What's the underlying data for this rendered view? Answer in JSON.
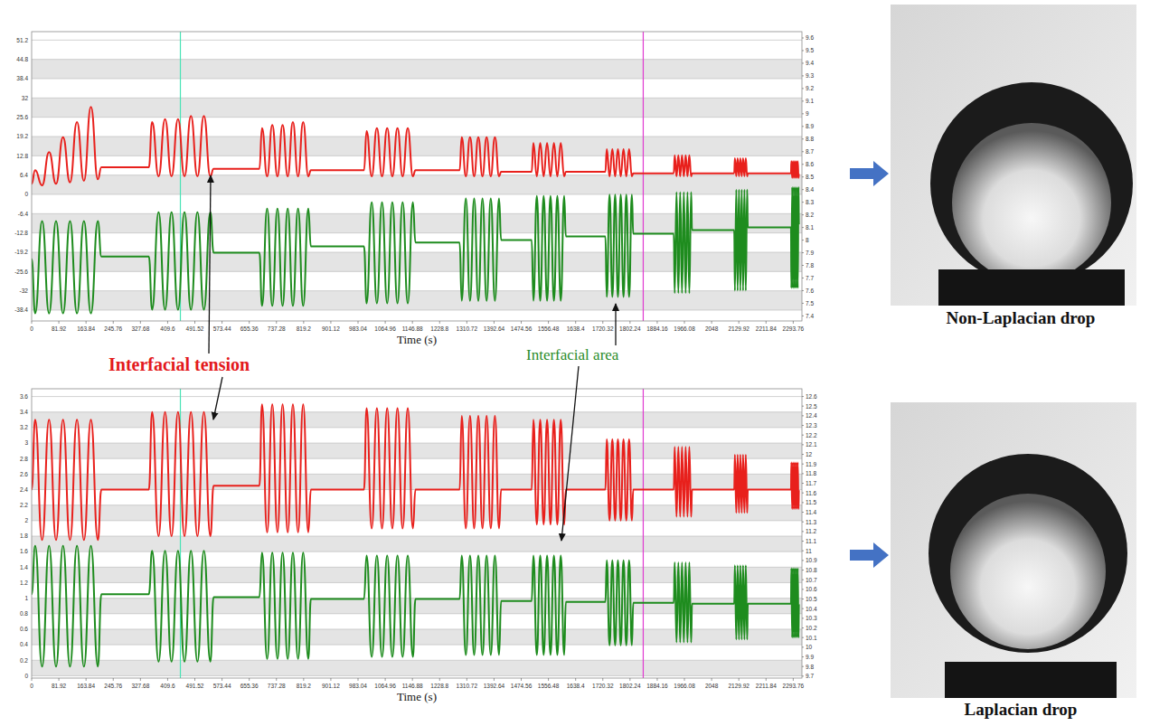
{
  "chart_data": [
    {
      "type": "line",
      "x_label": "Time (s)",
      "grid": true,
      "xlim": [
        0,
        2320
      ],
      "xticks": [
        0,
        81.92,
        163.84,
        245.76,
        327.68,
        409.6,
        491.52,
        573.44,
        655.36,
        737.28,
        819.2,
        901.12,
        983.04,
        1064.96,
        1146.88,
        1228.8,
        1310.72,
        1392.64,
        1474.56,
        1556.48,
        1638.4,
        1720.32,
        1802.24,
        1884.16,
        1966.08,
        2048,
        2129.92,
        2211.84,
        2293.76
      ],
      "ylim": [
        -42,
        54
      ],
      "yticks": [
        -38.4,
        -32,
        -25.6,
        -19.2,
        -12.8,
        -6.4,
        0,
        6.4,
        12.8,
        19.2,
        25.6,
        32,
        38.4,
        44.8,
        51.2
      ],
      "y2lim": [
        7.36,
        9.65
      ],
      "y2ticks": [
        7.4,
        7.5,
        7.6,
        7.7,
        7.8,
        7.9,
        8,
        8.1,
        8.2,
        8.3,
        8.4,
        8.5,
        8.6,
        8.7,
        8.8,
        8.9,
        9,
        9.1,
        9.2,
        9.3,
        9.4,
        9.5,
        9.6
      ],
      "cursor_lines": [
        {
          "value": 448,
          "color": "#49e3b5"
        },
        {
          "value": 1842,
          "color": "#e03ad0"
        }
      ],
      "x": [
        0,
        10.5,
        31.5,
        52.5,
        73.5,
        94.5,
        115.5,
        136.5,
        157.5,
        178.5,
        199.5,
        210,
        353,
        362.8,
        382.3,
        401.8,
        421.3,
        440.8,
        460.3,
        479.8,
        499.3,
        518.8,
        538.3,
        548,
        686,
        693.8,
        709.3,
        724.8,
        740.3,
        755.8,
        771.3,
        786.8,
        802.3,
        817.8,
        833.3,
        841,
        1001,
        1008.8,
        1024.3,
        1039.8,
        1055.3,
        1070.8,
        1086.3,
        1101.8,
        1117.3,
        1132.8,
        1148.3,
        1156,
        1289,
        1295.3,
        1307.8,
        1320.3,
        1332.8,
        1345.3,
        1357.8,
        1370.3,
        1382.8,
        1395.3,
        1407.8,
        1414,
        1506,
        1511.2,
        1521.5,
        1531.8,
        1542.1,
        1552.4,
        1562.7,
        1573,
        1583.3,
        1593.6,
        1603.9,
        1609,
        1728,
        1732.2,
        1740.6,
        1749,
        1757.4,
        1765.8,
        1774.2,
        1782.6,
        1791,
        1799.4,
        1807.8,
        1812,
        1934,
        1936.8,
        1942.3,
        1947.8,
        1953.3,
        1958.8,
        1964.3,
        1969.8,
        1975.3,
        1980.8,
        1986.3,
        1989,
        2116,
        2118.1,
        2122.2,
        2126.3,
        2130.4,
        2134.5,
        2138.6,
        2142.7,
        2146.8,
        2150.9,
        2155,
        2157,
        2287,
        2288.2,
        2290.6,
        2293,
        2295.4,
        2297.8,
        2300.2,
        2302.6,
        2305,
        2307.4,
        2309.8,
        2311
      ],
      "series": [
        {
          "color": "#e8201c",
          "values": [
            3.5,
            8,
            3,
            14,
            3.5,
            19,
            4,
            24,
            4.5,
            29,
            5,
            9,
            9,
            24,
            6,
            25,
            6,
            25,
            6,
            26,
            6,
            26,
            6,
            8.5,
            8.5,
            22,
            6,
            23,
            6,
            23,
            6,
            24,
            6,
            24,
            6,
            8,
            8,
            21,
            6,
            22,
            6,
            22,
            6,
            22,
            6,
            22,
            6,
            8,
            8,
            19,
            6,
            19,
            6,
            19,
            6,
            19,
            6,
            19,
            6,
            7.5,
            7.5,
            17,
            6,
            17,
            6,
            17,
            6,
            17,
            6,
            17,
            6,
            7.5,
            7.5,
            15,
            6,
            15,
            6,
            15,
            6,
            15,
            6,
            15,
            6,
            7,
            7,
            13,
            6,
            13,
            6,
            13,
            6,
            13,
            6,
            13,
            6,
            7,
            7,
            12,
            6,
            12,
            6,
            12,
            6,
            12,
            6,
            12,
            6,
            7,
            7,
            11,
            5.5,
            11,
            5.5,
            11,
            5.5,
            11,
            5.5,
            11,
            5.5,
            7
          ]
        },
        {
          "color": "#1e8c1e",
          "axis": "y2",
          "values": [
            7.85,
            7.42,
            8.15,
            7.42,
            8.15,
            7.42,
            8.15,
            7.42,
            8.15,
            7.42,
            8.15,
            7.87,
            7.87,
            7.45,
            8.22,
            7.45,
            8.22,
            7.45,
            8.22,
            7.45,
            8.22,
            7.45,
            8.22,
            7.9,
            7.9,
            7.48,
            8.25,
            7.48,
            8.25,
            7.48,
            8.25,
            7.48,
            8.25,
            7.48,
            8.25,
            7.95,
            7.95,
            7.5,
            8.3,
            7.5,
            8.3,
            7.5,
            8.3,
            7.5,
            8.3,
            7.5,
            8.3,
            7.98,
            7.98,
            7.52,
            8.33,
            7.52,
            8.33,
            7.52,
            8.33,
            7.52,
            8.33,
            7.52,
            8.33,
            8,
            8,
            7.52,
            8.35,
            7.52,
            8.35,
            7.52,
            8.35,
            7.52,
            8.35,
            7.52,
            8.35,
            8.03,
            8.03,
            7.55,
            8.36,
            7.55,
            8.36,
            7.55,
            8.36,
            7.55,
            8.36,
            7.55,
            8.36,
            8.05,
            8.05,
            7.58,
            8.38,
            7.58,
            8.38,
            7.58,
            8.38,
            7.58,
            8.38,
            7.58,
            8.38,
            8.08,
            8.08,
            7.6,
            8.4,
            7.6,
            8.4,
            7.6,
            8.4,
            7.6,
            8.4,
            7.6,
            8.4,
            8.1,
            8.1,
            7.62,
            8.42,
            7.62,
            8.42,
            7.62,
            8.42,
            7.62,
            8.42,
            7.62,
            8.42,
            8.12
          ]
        }
      ]
    },
    {
      "type": "line",
      "x_label": "Time (s)",
      "grid": true,
      "xlim": [
        0,
        2320
      ],
      "xticks": [
        0,
        81.92,
        163.84,
        245.76,
        327.68,
        409.6,
        491.52,
        573.44,
        655.36,
        737.28,
        819.2,
        901.12,
        983.04,
        1064.96,
        1146.88,
        1228.8,
        1310.72,
        1392.64,
        1474.56,
        1556.48,
        1638.4,
        1720.32,
        1802.24,
        1884.16,
        1966.08,
        2048,
        2129.92,
        2211.84,
        2293.76
      ],
      "ylim": [
        -0.03,
        3.7
      ],
      "yticks": [
        0,
        0.2,
        0.4,
        0.6,
        0.8,
        1,
        1.2,
        1.4,
        1.6,
        1.8,
        2,
        2.2,
        2.4,
        2.6,
        2.8,
        3,
        3.2,
        3.4,
        3.6
      ],
      "y2lim": [
        9.68,
        12.68
      ],
      "y2ticks": [
        9.7,
        9.8,
        9.9,
        10,
        10.1,
        10.2,
        10.3,
        10.4,
        10.5,
        10.6,
        10.7,
        10.8,
        10.9,
        11,
        11.1,
        11.2,
        11.3,
        11.4,
        11.5,
        11.6,
        11.7,
        11.8,
        11.9,
        12,
        12.1,
        12.2,
        12.3,
        12.4,
        12.5,
        12.6
      ],
      "cursor_lines": [
        {
          "value": 448,
          "color": "#49e3b5"
        },
        {
          "value": 1842,
          "color": "#e03ad0"
        }
      ],
      "x": [
        0,
        10.5,
        31.5,
        52.5,
        73.5,
        94.5,
        115.5,
        136.5,
        157.5,
        178.5,
        199.5,
        210,
        353,
        362.8,
        382.3,
        401.8,
        421.3,
        440.8,
        460.3,
        479.8,
        499.3,
        518.8,
        538.3,
        548,
        686,
        693.8,
        709.3,
        724.8,
        740.3,
        755.8,
        771.3,
        786.8,
        802.3,
        817.8,
        833.3,
        841,
        1001,
        1008.8,
        1024.3,
        1039.8,
        1055.3,
        1070.8,
        1086.3,
        1101.8,
        1117.3,
        1132.8,
        1148.3,
        1156,
        1289,
        1295.3,
        1307.8,
        1320.3,
        1332.8,
        1345.3,
        1357.8,
        1370.3,
        1382.8,
        1395.3,
        1407.8,
        1414,
        1506,
        1511.2,
        1521.5,
        1531.8,
        1542.1,
        1552.4,
        1562.7,
        1573,
        1583.3,
        1593.6,
        1603.9,
        1609,
        1728,
        1732.2,
        1740.6,
        1749,
        1757.4,
        1765.8,
        1774.2,
        1782.6,
        1791,
        1799.4,
        1807.8,
        1812,
        1934,
        1936.8,
        1942.3,
        1947.8,
        1953.3,
        1958.8,
        1964.3,
        1969.8,
        1975.3,
        1980.8,
        1986.3,
        1989,
        2116,
        2118.1,
        2122.2,
        2126.3,
        2130.4,
        2134.5,
        2138.6,
        2142.7,
        2146.8,
        2150.9,
        2155,
        2157,
        2287,
        2288.2,
        2290.6,
        2293,
        2295.4,
        2297.8,
        2300.2,
        2302.6,
        2305,
        2307.4,
        2309.8,
        2311
      ],
      "series": [
        {
          "color": "#e8201c",
          "values": [
            2.4,
            3.3,
            1.75,
            3.3,
            1.75,
            3.3,
            1.75,
            3.3,
            1.75,
            3.3,
            1.75,
            2.4,
            2.4,
            3.4,
            1.8,
            3.4,
            1.8,
            3.4,
            1.8,
            3.4,
            1.8,
            3.4,
            1.8,
            2.45,
            2.45,
            3.5,
            1.85,
            3.5,
            1.85,
            3.5,
            1.85,
            3.5,
            1.85,
            3.5,
            1.85,
            2.4,
            2.4,
            3.45,
            1.9,
            3.45,
            1.9,
            3.45,
            1.9,
            3.45,
            1.9,
            3.45,
            1.9,
            2.4,
            2.4,
            3.35,
            1.9,
            3.35,
            1.9,
            3.35,
            1.9,
            3.35,
            1.9,
            3.35,
            1.9,
            2.4,
            2.4,
            3.3,
            1.95,
            3.3,
            1.95,
            3.3,
            1.95,
            3.3,
            1.95,
            3.3,
            1.95,
            2.4,
            2.4,
            3.05,
            2,
            3.05,
            2,
            3.05,
            2,
            3.05,
            2,
            3.05,
            2,
            2.4,
            2.4,
            2.95,
            2.05,
            2.95,
            2.05,
            2.95,
            2.05,
            2.95,
            2.05,
            2.95,
            2.05,
            2.4,
            2.4,
            2.85,
            2.1,
            2.85,
            2.1,
            2.85,
            2.1,
            2.85,
            2.1,
            2.85,
            2.1,
            2.4,
            2.4,
            2.75,
            2.15,
            2.75,
            2.15,
            2.75,
            2.15,
            2.75,
            2.15,
            2.75,
            2.15,
            2.4
          ]
        },
        {
          "color": "#1e8c1e",
          "axis": "y2",
          "values": [
            10.55,
            11.05,
            9.8,
            11.05,
            9.8,
            11.05,
            9.8,
            11.05,
            9.8,
            11.05,
            9.8,
            10.55,
            10.55,
            11,
            9.85,
            11,
            9.85,
            11,
            9.85,
            11,
            9.85,
            11,
            9.85,
            10.52,
            10.52,
            10.98,
            9.88,
            10.98,
            9.88,
            10.98,
            9.88,
            10.98,
            9.88,
            10.98,
            9.88,
            10.5,
            10.5,
            10.95,
            9.9,
            10.95,
            9.9,
            10.95,
            9.9,
            10.95,
            9.9,
            10.95,
            9.9,
            10.5,
            10.5,
            10.95,
            9.92,
            10.95,
            9.92,
            10.95,
            9.92,
            10.95,
            9.92,
            10.95,
            9.92,
            10.48,
            10.48,
            10.95,
            9.92,
            10.95,
            9.92,
            10.95,
            9.92,
            10.95,
            9.92,
            10.95,
            9.92,
            10.47,
            10.47,
            10.9,
            10.02,
            10.9,
            10.02,
            10.9,
            10.02,
            10.9,
            10.02,
            10.9,
            10.02,
            10.46,
            10.46,
            10.88,
            10.05,
            10.88,
            10.05,
            10.88,
            10.05,
            10.88,
            10.05,
            10.88,
            10.05,
            10.45,
            10.45,
            10.85,
            10.08,
            10.85,
            10.08,
            10.85,
            10.08,
            10.85,
            10.08,
            10.85,
            10.08,
            10.45,
            10.45,
            10.82,
            10.1,
            10.82,
            10.1,
            10.82,
            10.1,
            10.82,
            10.1,
            10.82,
            10.1,
            10.45
          ]
        }
      ]
    }
  ],
  "annotations": [
    {
      "text": "Interfacial tension",
      "color": "#e3191c"
    },
    {
      "text": "Interfacial area",
      "color": "#2a8c2a"
    }
  ],
  "images": [
    {
      "caption": "Non-Laplacian drop"
    },
    {
      "caption": "Laplacian drop"
    }
  ]
}
